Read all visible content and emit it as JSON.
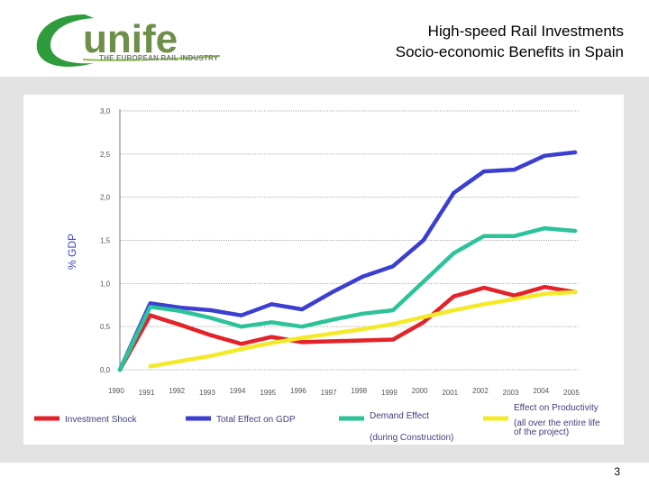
{
  "header": {
    "logo_text": "unife",
    "logo_subtitle": "THE EUROPEAN RAIL INDUSTRY",
    "title_line1": "High-speed Rail Investments",
    "title_line2": "Socio-economic Benefits in Spain"
  },
  "footer": {
    "page_number": "3"
  },
  "chart_data": {
    "type": "line",
    "title": "",
    "xlabel": "",
    "ylabel": "% GDP",
    "x": [
      "1990",
      "1991",
      "1992",
      "1993",
      "1994",
      "1995",
      "1996",
      "1997",
      "1998",
      "1999",
      "2000",
      "2001",
      "2002",
      "2003",
      "2004",
      "2005"
    ],
    "ylim": [
      0,
      3.0
    ],
    "yticks": [
      "0,0",
      "0,5",
      "1,0",
      "1,5",
      "2,0",
      "2,5",
      "3,0"
    ],
    "grid": true,
    "legend_position": "bottom",
    "series": [
      {
        "name": "Investment Shock",
        "color": "#e3222a",
        "values": [
          0.0,
          0.63,
          0.52,
          0.4,
          0.3,
          0.38,
          0.32,
          0.33,
          0.34,
          0.35,
          0.55,
          0.85,
          0.95,
          0.86,
          0.96,
          0.9
        ]
      },
      {
        "name": "Total Effect on GDP",
        "color": "#3b3fd1",
        "values": [
          0.0,
          0.77,
          0.72,
          0.69,
          0.63,
          0.76,
          0.7,
          0.9,
          1.08,
          1.2,
          1.5,
          2.05,
          2.3,
          2.32,
          2.48,
          2.52
        ]
      },
      {
        "name": "Demand Effect",
        "name_line2": "(during Construction)",
        "color": "#2cc39a",
        "values": [
          0.0,
          0.73,
          0.68,
          0.6,
          0.5,
          0.55,
          0.5,
          0.58,
          0.65,
          0.69,
          1.02,
          1.35,
          1.55,
          1.55,
          1.64,
          1.61
        ]
      },
      {
        "name": "Effect on Productivity",
        "name_line2": "(all over the entire life",
        "name_line3": "of the project)",
        "color": "#f4ea2a",
        "values": [
          null,
          0.04,
          0.1,
          0.16,
          0.24,
          0.31,
          0.37,
          0.42,
          0.47,
          0.53,
          0.61,
          0.69,
          0.76,
          0.82,
          0.88,
          0.9
        ]
      }
    ]
  }
}
